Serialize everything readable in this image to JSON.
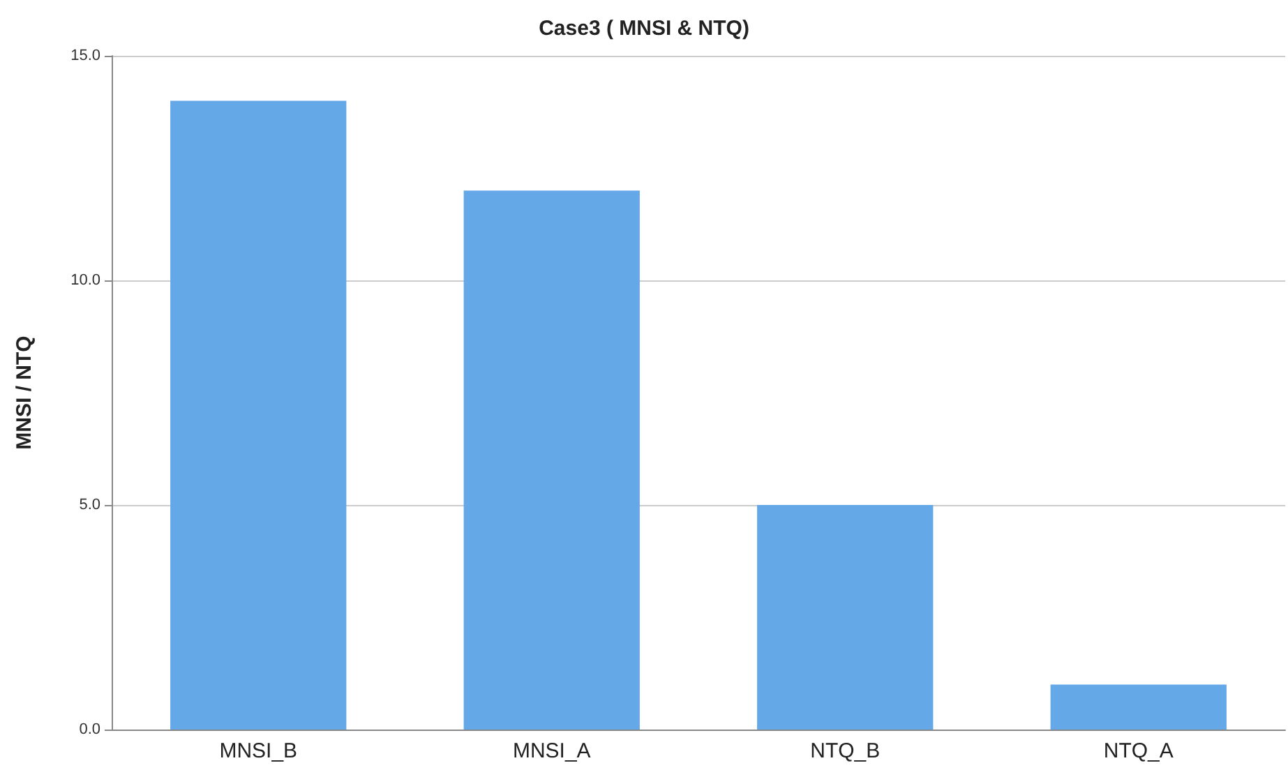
{
  "chart_data": {
    "type": "bar",
    "title": "Case3 ( MNSI & NTQ)",
    "ylabel": "MNSI / NTQ",
    "categories": [
      "MNSI_B",
      "MNSI_A",
      "NTQ_B",
      "NTQ_A"
    ],
    "values": [
      14,
      12,
      5,
      1
    ],
    "color": "#64a8e8",
    "ylim": [
      0,
      15
    ],
    "yticks": [
      {
        "value": 0,
        "label": "0.0"
      },
      {
        "value": 5,
        "label": "5.0"
      },
      {
        "value": 10,
        "label": "10.0"
      },
      {
        "value": 15,
        "label": "15.0"
      }
    ],
    "grid": "y"
  }
}
